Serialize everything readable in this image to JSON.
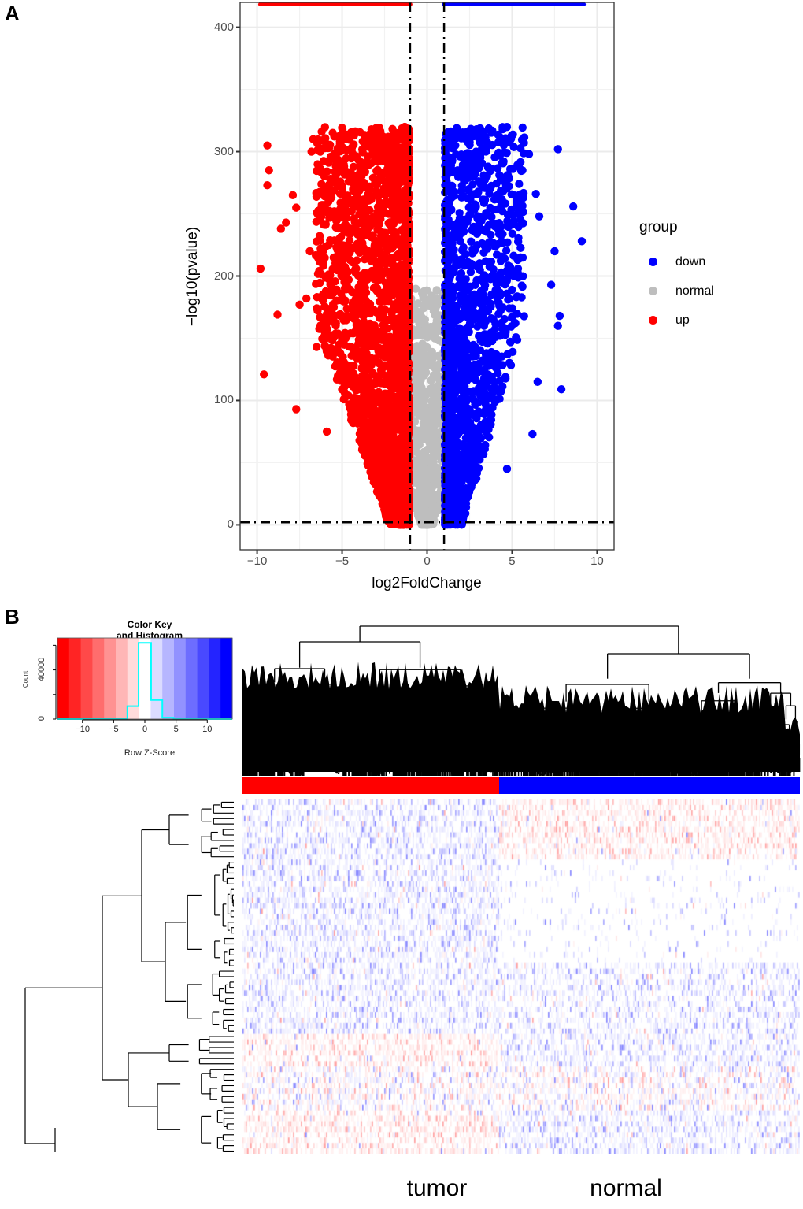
{
  "panels": {
    "a": {
      "label": "A"
    },
    "b": {
      "label": "B"
    }
  },
  "chart_data": [
    {
      "type": "scatter",
      "name": "volcano-plot",
      "title": "",
      "xlabel": "log2FoldChange",
      "ylabel": "−log10(pvalue)",
      "xlim": [
        -11,
        11
      ],
      "ylim": [
        -20,
        420
      ],
      "xticks": [
        -10,
        -5,
        0,
        5,
        10
      ],
      "xtick_labels": [
        "−10",
        "−5",
        "0",
        "5",
        "10"
      ],
      "yticks": [
        0,
        100,
        200,
        300,
        400
      ],
      "ytick_labels": [
        "0",
        "100",
        "200",
        "300",
        "400"
      ],
      "grid": true,
      "thresholds": {
        "log2fc": [
          -1,
          1
        ],
        "neg_log10_p": 2
      },
      "legend": {
        "title": "group",
        "placement": "right",
        "entries": [
          {
            "label": "down",
            "color": "#0000ff"
          },
          {
            "label": "normal",
            "color": "#bebebe"
          },
          {
            "label": "up",
            "color": "#ff0000"
          }
        ]
      },
      "series": [
        {
          "name": "up",
          "color": "#ff0000",
          "x_range": [
            -9.8,
            -1.0
          ],
          "y_range": [
            0,
            322
          ],
          "capped_at_top": true,
          "highlight_points": [
            [
              -9.8,
              206
            ],
            [
              -9.4,
              305
            ],
            [
              -9.3,
              285
            ],
            [
              -9.4,
              273
            ],
            [
              -9.6,
              121
            ],
            [
              -8.6,
              238
            ],
            [
              -8.8,
              169
            ],
            [
              -8.3,
              243
            ],
            [
              -7.9,
              265
            ],
            [
              -7.7,
              255
            ],
            [
              -7.7,
              93
            ],
            [
              -7.5,
              177
            ],
            [
              -7.1,
              182
            ],
            [
              -6.9,
              220
            ],
            [
              -6.8,
              300
            ],
            [
              -6.7,
              310
            ],
            [
              -6.5,
              143
            ],
            [
              -6.2,
              316
            ],
            [
              -5.9,
              75
            ]
          ]
        },
        {
          "name": "down",
          "color": "#0000ff",
          "x_range": [
            1.0,
            9.2
          ],
          "y_range": [
            0,
            322
          ],
          "capped_at_top": true,
          "highlight_points": [
            [
              9.1,
              228
            ],
            [
              8.6,
              256
            ],
            [
              7.9,
              109
            ],
            [
              7.8,
              168
            ],
            [
              7.7,
              160
            ],
            [
              7.7,
              302
            ],
            [
              7.5,
              220
            ],
            [
              7.3,
              193
            ],
            [
              6.6,
              248
            ],
            [
              6.4,
              266
            ],
            [
              6.2,
              73
            ],
            [
              6.5,
              115
            ],
            [
              6.0,
              298
            ],
            [
              5.7,
              307
            ],
            [
              5.4,
              288
            ],
            [
              4.7,
              45
            ]
          ]
        },
        {
          "name": "normal",
          "color": "#bebebe",
          "x_range": [
            -1.0,
            1.0
          ],
          "y_range": [
            0,
            200
          ]
        }
      ]
    },
    {
      "type": "heatmap",
      "name": "expression-heatmap",
      "color_key": {
        "title_line1": "Color Key",
        "title_line2": "and Histogram",
        "xlabel": "Row Z-Score",
        "ylabel": "Count",
        "xticks": [
          -10,
          -5,
          0,
          5,
          10
        ],
        "xtick_labels": [
          "−10",
          "−5",
          "0",
          "5",
          "10"
        ],
        "yticks": [
          0,
          40000
        ],
        "ytick_labels": [
          "0",
          "40000"
        ],
        "xlim": [
          -14,
          14
        ],
        "ylim": [
          0,
          66000
        ],
        "low_color": "#ff0000",
        "mid_color": "#ffffff",
        "high_color": "#0000ff",
        "histogram_color": "#00ffff",
        "histogram": {
          "bin_edges": [
            -14,
            -4.6,
            -2.8,
            -1,
            1,
            2.8,
            4.6,
            14
          ],
          "counts": [
            0,
            200,
            10500,
            62000,
            15500,
            1200,
            0
          ]
        }
      },
      "column_groups": [
        {
          "label": "tumor",
          "color": "#ff0000",
          "fraction": 0.46
        },
        {
          "label": "normal",
          "color": "#0000ff",
          "fraction": 0.54
        }
      ],
      "row_cluster_blocks": [
        {
          "rows": 11,
          "tumor": "blue",
          "normal": "red"
        },
        {
          "rows": 19,
          "tumor": "blue",
          "normal": "white"
        },
        {
          "rows": 13,
          "tumor": "blue",
          "normal": "blue-light"
        },
        {
          "rows": 6,
          "tumor": "red",
          "normal": "blue"
        },
        {
          "rows": 8,
          "tumor": "mixed",
          "normal": "mixed"
        },
        {
          "rows": 8,
          "tumor": "red",
          "normal": "blue"
        }
      ]
    }
  ]
}
